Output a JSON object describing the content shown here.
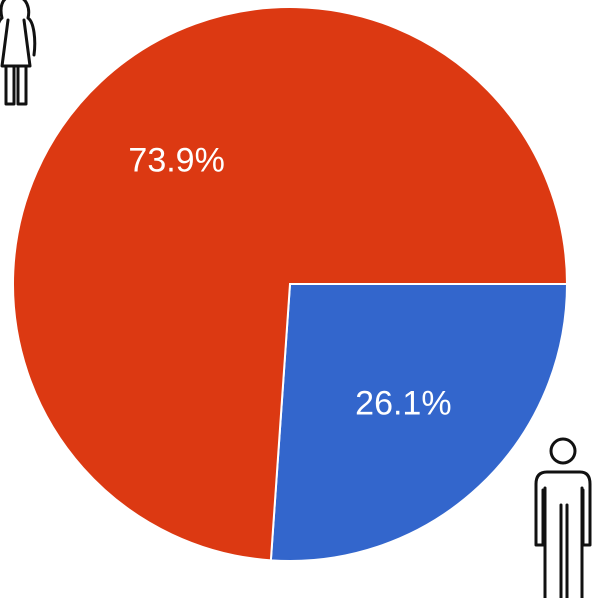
{
  "chart_data": {
    "type": "pie",
    "values": [
      26.1,
      73.9
    ],
    "value_labels": [
      "26.1%",
      "73.9%"
    ],
    "colors": [
      "#3366cc",
      "#dc3912"
    ]
  }
}
